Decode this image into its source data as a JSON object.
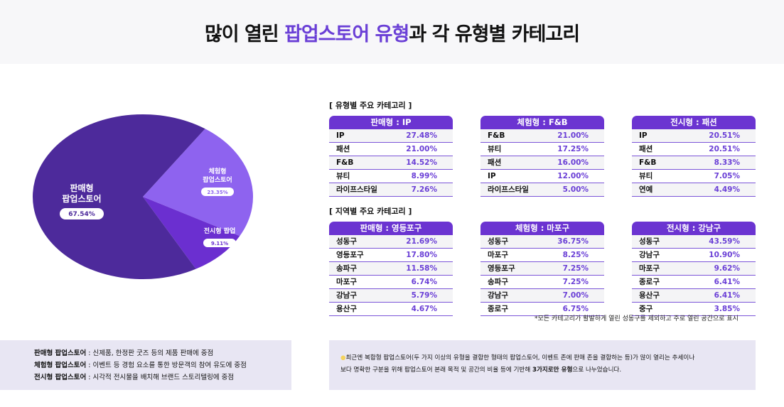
{
  "title": {
    "pre": "많이 열린 ",
    "highlight": "팝업스토어 유형",
    "post": "과 각 유형별 카테고리"
  },
  "chart_data": {
    "type": "pie",
    "slices": [
      {
        "name": "체험형 팝업스토어",
        "label_lines": [
          "체험형",
          "팝업스토어"
        ],
        "value": 23.35,
        "value_label": "23.35%",
        "color": "#8e63ef"
      },
      {
        "name": "전시형 팝업",
        "label_lines": [
          "전시형 팝업"
        ],
        "value": 9.11,
        "value_label": "9.11%",
        "color": "#6b2fd0"
      },
      {
        "name": "판매형 팝업스토어",
        "label_lines": [
          "판매형",
          "팝업스토어"
        ],
        "value": 67.54,
        "value_label": "67.54%",
        "color": "#4d2a9b"
      }
    ]
  },
  "sections": [
    {
      "heading": "[ 유형별 주요 카테고리 ]",
      "tables": [
        {
          "header": "판매형 : IP",
          "rows": [
            [
              "IP",
              "27.48%"
            ],
            [
              "패션",
              "21.00%"
            ],
            [
              "F&B",
              "14.52%"
            ],
            [
              "뷰티",
              "8.99%"
            ],
            [
              "라이프스타일",
              "7.26%"
            ]
          ]
        },
        {
          "header": "체험형 : F&B",
          "rows": [
            [
              "F&B",
              "21.00%"
            ],
            [
              "뷰티",
              "17.25%"
            ],
            [
              "패션",
              "16.00%"
            ],
            [
              "IP",
              "12.00%"
            ],
            [
              "라이프스타일",
              "5.00%"
            ]
          ]
        },
        {
          "header": "전시형 : 패션",
          "rows": [
            [
              "IP",
              "20.51%"
            ],
            [
              "패션",
              "20.51%"
            ],
            [
              "F&B",
              "8.33%"
            ],
            [
              "뷰티",
              "7.05%"
            ],
            [
              "연예",
              "4.49%"
            ]
          ]
        }
      ]
    },
    {
      "heading": "[ 지역별 주요 카테고리 ]",
      "tables": [
        {
          "header": "판매형 : 영등포구",
          "rows": [
            [
              "성동구",
              "21.69%"
            ],
            [
              "영등포구",
              "17.80%"
            ],
            [
              "송파구",
              "11.58%"
            ],
            [
              "마포구",
              "6.74%"
            ],
            [
              "강남구",
              "5.79%"
            ],
            [
              "용산구",
              "4.67%"
            ]
          ]
        },
        {
          "header": "체험형 : 마포구",
          "rows": [
            [
              "성동구",
              "36.75%"
            ],
            [
              "마포구",
              "8.25%"
            ],
            [
              "영등포구",
              "7.25%"
            ],
            [
              "송파구",
              "7.25%"
            ],
            [
              "강남구",
              "7.00%"
            ],
            [
              "종로구",
              "6.75%"
            ]
          ]
        },
        {
          "header": "전시형 : 강남구",
          "rows": [
            [
              "성동구",
              "43.59%"
            ],
            [
              "강남구",
              "10.90%"
            ],
            [
              "마포구",
              "9.62%"
            ],
            [
              "종로구",
              "6.41%"
            ],
            [
              "용산구",
              "6.41%"
            ],
            [
              "중구",
              "3.85%"
            ]
          ]
        }
      ]
    }
  ],
  "footnote": "*모든 카테고리가 활발하게 열린 성동구를 제외하고 주로 열린 공간으로 표시",
  "legend_box": [
    {
      "term": "판매형 팝업스토어",
      "desc": " : 신제품, 한정판 굿즈 등의 제품 판매에 중점"
    },
    {
      "term": "체험형 팝업스토어",
      "desc": " : 이벤트 등 경험 요소를 통한 방문객의 참여 유도에 중점"
    },
    {
      "term": "전시형 팝업스토어",
      "desc": " : 시각적 전시물을 배치해 브랜드 스토리텔링에 중점"
    }
  ],
  "info_box": {
    "line1": "최근엔 복합형 팝업스토어(두 가지 이상의 유형을 결합한 형태의 팝업스토어, 이벤트 존에 판매 존을 결합하는 등)가 많이 열리는 추세이나",
    "line2_pre": "보다 명확한 구분을 위해 팝업스토어 본래 목적 및 공간의 비율 등에 기반해 ",
    "line2_bold": "3가지로만 유형",
    "line2_post": "으로 나누었습니다."
  }
}
